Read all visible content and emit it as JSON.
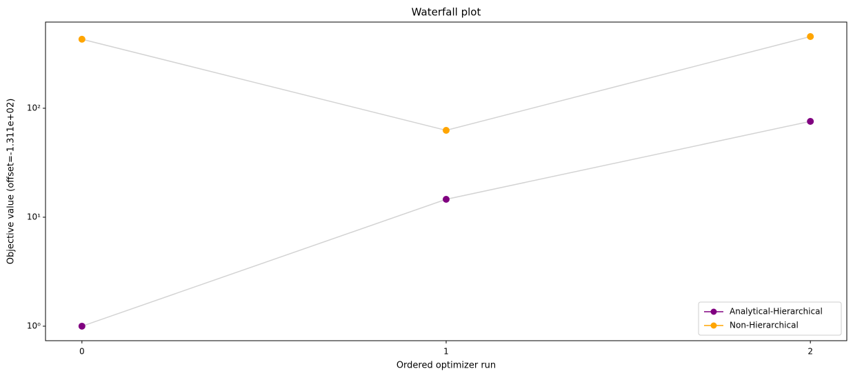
{
  "chart_data": {
    "type": "line",
    "title": "Waterfall plot",
    "x_label": "Ordered optimizer run",
    "y_label": "Objective value (offset=-1.311e+02)",
    "x": [
      0,
      1,
      2
    ],
    "series": [
      {
        "name": "Analytical-Hierarchical",
        "color": "#800080",
        "values": [
          1,
          14.6,
          75.8
        ]
      },
      {
        "name": "Non-Hierarchical",
        "color": "#ffa500",
        "values": [
          430,
          62.7,
          455
        ]
      }
    ],
    "line_color": "#d3d3d3",
    "xlim": [
      -0.1,
      2.1
    ],
    "xticks": [
      0,
      1,
      2
    ],
    "ylim": [
      0.736,
      618
    ],
    "y_scale": "log",
    "yticks": [
      {
        "value": 1,
        "label": "10⁰"
      },
      {
        "value": 10,
        "label": "10¹"
      },
      {
        "value": 100,
        "label": "10²"
      }
    ],
    "legend": "lower right"
  }
}
